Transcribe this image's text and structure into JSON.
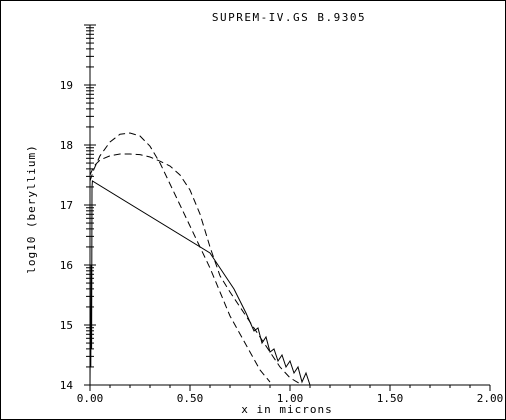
{
  "chart_data": {
    "type": "line",
    "title": "SUPREM-IV.GS B.9305",
    "xlabel": "x in microns",
    "ylabel": "log10 (beryllium)",
    "xlim": [
      0.0,
      2.0
    ],
    "ylim": [
      14,
      20
    ],
    "x_ticks": [
      "0.00",
      "0.50",
      "1.00",
      "1.50",
      "2.00"
    ],
    "y_ticks": [
      "14",
      "15",
      "16",
      "17",
      "18",
      "19"
    ],
    "grid": false,
    "legend": "none",
    "series": [
      {
        "line_style": "dashed",
        "x": [
          0.0,
          0.02,
          0.05,
          0.1,
          0.15,
          0.2,
          0.25,
          0.3,
          0.35,
          0.4,
          0.45,
          0.5,
          0.55,
          0.6,
          0.65,
          0.7,
          0.75,
          0.8,
          0.85,
          0.9,
          0.95,
          1.0,
          1.05
        ],
        "y": [
          17.5,
          17.65,
          17.75,
          17.82,
          17.85,
          17.85,
          17.84,
          17.8,
          17.73,
          17.65,
          17.5,
          17.25,
          16.85,
          16.3,
          15.82,
          15.55,
          15.3,
          15.05,
          14.8,
          14.55,
          14.3,
          14.12,
          14.02
        ]
      },
      {
        "line_style": "dashed",
        "x": [
          0.0,
          0.02,
          0.05,
          0.1,
          0.15,
          0.2,
          0.25,
          0.3,
          0.35,
          0.4,
          0.45,
          0.5,
          0.55,
          0.6,
          0.65,
          0.7,
          0.75,
          0.8,
          0.85,
          0.9
        ],
        "y": [
          17.4,
          17.6,
          17.82,
          18.05,
          18.18,
          18.2,
          18.15,
          17.98,
          17.7,
          17.35,
          17.0,
          16.65,
          16.3,
          15.95,
          15.55,
          15.15,
          14.85,
          14.55,
          14.25,
          14.05
        ]
      },
      {
        "line_style": "solid",
        "x": [
          0.0,
          0.002,
          0.004,
          0.006,
          0.008,
          0.01,
          0.012,
          0.6,
          0.63,
          0.66,
          0.69,
          0.72,
          0.75,
          0.78,
          0.8,
          0.82,
          0.84,
          0.86,
          0.88,
          0.9,
          0.92,
          0.94,
          0.96,
          0.98,
          1.0,
          1.02,
          1.04,
          1.06,
          1.08,
          1.1
        ],
        "y": [
          14.0,
          15.2,
          14.3,
          16.0,
          14.6,
          17.3,
          17.4,
          16.2,
          16.05,
          15.9,
          15.75,
          15.6,
          15.4,
          15.2,
          15.05,
          14.9,
          14.95,
          14.7,
          14.8,
          14.55,
          14.6,
          14.4,
          14.5,
          14.3,
          14.4,
          14.2,
          14.3,
          14.05,
          14.2,
          14.0
        ]
      }
    ]
  }
}
